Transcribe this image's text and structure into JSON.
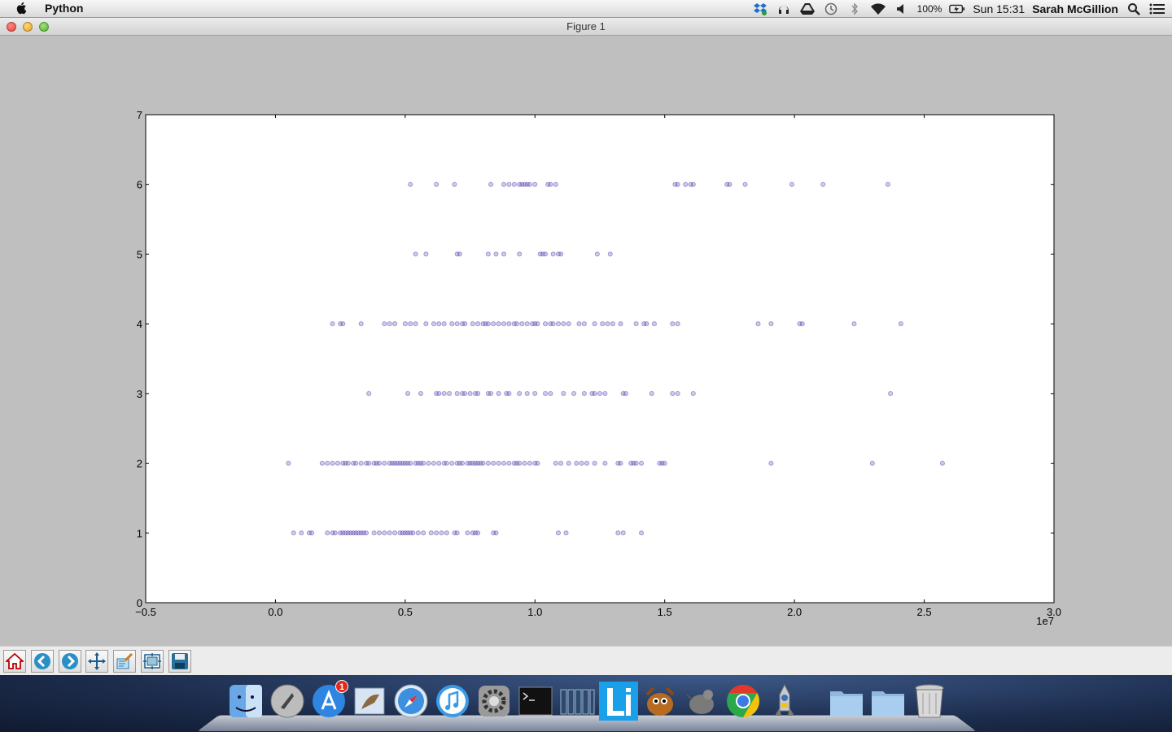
{
  "menubar": {
    "app_name": "Python",
    "battery": "100%",
    "clock": "Sun 15:31",
    "user": "Sarah McGillion",
    "status_icons": [
      "dropbox-icon",
      "headphones-icon",
      "drive-icon",
      "time-machine-icon",
      "bluetooth-icon",
      "wifi-icon",
      "volume-icon",
      "battery-icon",
      "spotlight-icon",
      "notification-center-icon"
    ]
  },
  "window": {
    "title": "Figure 1"
  },
  "toolbar": {
    "buttons": [
      "home-icon",
      "back-icon",
      "forward-icon",
      "pan-icon",
      "zoom-icon",
      "subplots-icon",
      "save-icon"
    ]
  },
  "dock": {
    "apps": [
      "finder",
      "launchpad",
      "app-store",
      "mail",
      "safari",
      "itunes",
      "system-preferences",
      "terminal",
      "activity-monitor",
      "li",
      "gimp",
      "python-idle",
      "chrome",
      "python-launcher",
      "folder",
      "folder",
      "trash"
    ],
    "app_store_badge": "1"
  },
  "chart_data": {
    "type": "scatter",
    "title": "",
    "xlabel": "",
    "ylabel": "",
    "xlim": [
      -0.5,
      3.0
    ],
    "ylim": [
      0,
      7
    ],
    "x_ticks": [
      "−0.5",
      "0.0",
      "0.5",
      "1.0",
      "1.5",
      "2.0",
      "2.5",
      "3.0"
    ],
    "y_ticks": [
      "0",
      "1",
      "2",
      "3",
      "4",
      "5",
      "6",
      "7"
    ],
    "x_offset_label": "1e7",
    "grid": false,
    "point_color": "#5a3fb0",
    "points_by_y": [
      {
        "y": 1,
        "x": [
          0.07,
          0.1,
          0.13,
          0.14,
          0.2,
          0.22,
          0.23,
          0.25,
          0.26,
          0.27,
          0.28,
          0.29,
          0.3,
          0.31,
          0.32,
          0.33,
          0.34,
          0.35,
          0.38,
          0.4,
          0.42,
          0.44,
          0.46,
          0.48,
          0.49,
          0.5,
          0.51,
          0.52,
          0.53,
          0.55,
          0.57,
          0.6,
          0.62,
          0.64,
          0.66,
          0.69,
          0.7,
          0.74,
          0.76,
          0.77,
          0.78,
          0.84,
          0.85,
          1.09,
          1.12,
          1.32,
          1.34,
          1.41
        ]
      },
      {
        "y": 2,
        "x": [
          0.05,
          0.18,
          0.2,
          0.22,
          0.24,
          0.26,
          0.27,
          0.28,
          0.3,
          0.31,
          0.33,
          0.35,
          0.36,
          0.38,
          0.39,
          0.4,
          0.42,
          0.44,
          0.45,
          0.46,
          0.47,
          0.48,
          0.49,
          0.5,
          0.51,
          0.52,
          0.54,
          0.55,
          0.56,
          0.57,
          0.59,
          0.61,
          0.63,
          0.65,
          0.66,
          0.68,
          0.7,
          0.71,
          0.72,
          0.74,
          0.75,
          0.76,
          0.77,
          0.78,
          0.79,
          0.8,
          0.82,
          0.84,
          0.86,
          0.88,
          0.9,
          0.92,
          0.93,
          0.94,
          0.96,
          0.98,
          1.0,
          1.01,
          1.08,
          1.1,
          1.13,
          1.16,
          1.18,
          1.2,
          1.23,
          1.27,
          1.32,
          1.33,
          1.37,
          1.38,
          1.39,
          1.41,
          1.48,
          1.49,
          1.5,
          1.91,
          2.3,
          2.57
        ]
      },
      {
        "y": 3,
        "x": [
          0.36,
          0.51,
          0.56,
          0.62,
          0.63,
          0.65,
          0.67,
          0.7,
          0.72,
          0.73,
          0.75,
          0.77,
          0.78,
          0.82,
          0.83,
          0.86,
          0.89,
          0.9,
          0.94,
          0.97,
          1.0,
          1.04,
          1.06,
          1.11,
          1.15,
          1.19,
          1.22,
          1.23,
          1.25,
          1.27,
          1.34,
          1.35,
          1.45,
          1.53,
          1.55,
          1.61,
          2.37
        ]
      },
      {
        "y": 4,
        "x": [
          0.22,
          0.25,
          0.26,
          0.33,
          0.42,
          0.44,
          0.46,
          0.5,
          0.52,
          0.54,
          0.58,
          0.61,
          0.63,
          0.65,
          0.68,
          0.7,
          0.72,
          0.73,
          0.76,
          0.78,
          0.8,
          0.81,
          0.82,
          0.84,
          0.86,
          0.88,
          0.9,
          0.92,
          0.93,
          0.95,
          0.97,
          0.99,
          1.0,
          1.01,
          1.04,
          1.06,
          1.07,
          1.09,
          1.11,
          1.13,
          1.17,
          1.19,
          1.23,
          1.26,
          1.28,
          1.3,
          1.33,
          1.39,
          1.42,
          1.43,
          1.46,
          1.53,
          1.55,
          1.86,
          1.91,
          2.02,
          2.03,
          2.23,
          2.41
        ]
      },
      {
        "y": 5,
        "x": [
          0.54,
          0.58,
          0.7,
          0.71,
          0.82,
          0.85,
          0.88,
          0.94,
          1.02,
          1.03,
          1.04,
          1.07,
          1.09,
          1.1,
          1.24,
          1.29
        ]
      },
      {
        "y": 6,
        "x": [
          0.52,
          0.62,
          0.69,
          0.83,
          0.88,
          0.9,
          0.92,
          0.94,
          0.95,
          0.96,
          0.97,
          0.98,
          1.0,
          1.05,
          1.06,
          1.08,
          1.54,
          1.55,
          1.58,
          1.6,
          1.61,
          1.74,
          1.75,
          1.81,
          1.99,
          2.11,
          2.36
        ]
      }
    ]
  }
}
